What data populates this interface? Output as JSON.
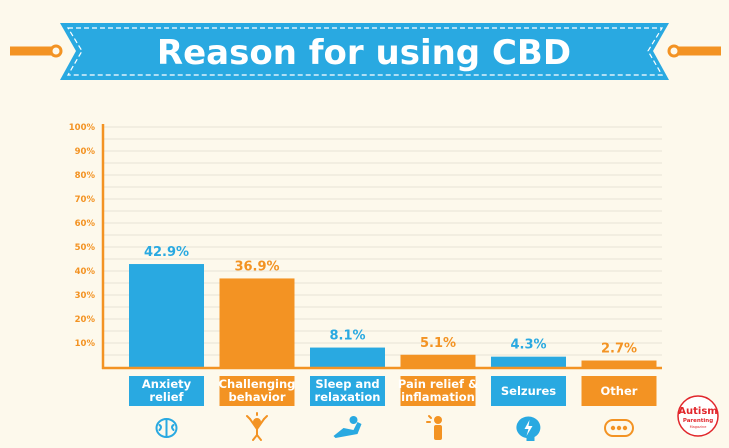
{
  "header": {
    "title": "Reason for using CBD"
  },
  "colors": {
    "background": "#fdf9ec",
    "blue": "#29a9e1",
    "orange": "#f39323",
    "grid": "#e6e2d6",
    "axis": "#f39323"
  },
  "chart_data": {
    "type": "bar",
    "title": "Reason for using CBD",
    "categories": [
      [
        "Anxiety",
        "relief"
      ],
      [
        "Challenging",
        "behavior"
      ],
      [
        "Sleep and",
        "relaxation"
      ],
      [
        "Pain relief &",
        "inflamation"
      ],
      [
        "Selzures"
      ],
      [
        "Other"
      ]
    ],
    "values": [
      42.9,
      36.9,
      8.1,
      5.1,
      4.3,
      2.7
    ],
    "value_labels": [
      "42.9%",
      "36.9%",
      "8.1%",
      "5.1%",
      "4.3%",
      "2.7%"
    ],
    "bar_colors": [
      "blue",
      "orange",
      "blue",
      "orange",
      "blue",
      "orange"
    ],
    "y_ticks": [
      "10%",
      "20%",
      "30%",
      "40%",
      "50%",
      "60%",
      "70%",
      "80%",
      "90%",
      "100%"
    ],
    "ylim": [
      0,
      100
    ],
    "grid": true,
    "icons": [
      "brain-icon",
      "stressed-person-icon",
      "sleeping-person-icon",
      "pain-person-icon",
      "head-lightning-icon",
      "ellipsis-icon"
    ]
  },
  "logo": {
    "line1": "Autism",
    "line2": "Parenting",
    "line3": "Magazine"
  }
}
